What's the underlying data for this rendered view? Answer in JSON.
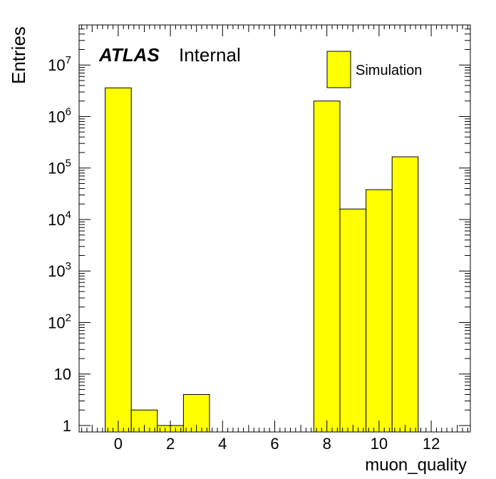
{
  "chart_data": {
    "type": "bar",
    "title": "",
    "xlabel": "muon_quality",
    "ylabel": "Entries",
    "x_scale": "linear",
    "y_scale": "log",
    "xlim": [
      -1.5,
      13.5
    ],
    "ylim": [
      0.75,
      60000000
    ],
    "bins": [
      {
        "low": -0.5,
        "high": 0.5,
        "value": 3600000
      },
      {
        "low": 0.5,
        "high": 1.5,
        "value": 2
      },
      {
        "low": 1.5,
        "high": 2.5,
        "value": 1
      },
      {
        "low": 2.5,
        "high": 3.5,
        "value": 4
      },
      {
        "low": 3.5,
        "high": 4.5,
        "value": 0
      },
      {
        "low": 4.5,
        "high": 5.5,
        "value": 0
      },
      {
        "low": 5.5,
        "high": 6.5,
        "value": 0
      },
      {
        "low": 6.5,
        "high": 7.5,
        "value": 0
      },
      {
        "low": 7.5,
        "high": 8.5,
        "value": 2000000
      },
      {
        "low": 8.5,
        "high": 9.5,
        "value": 16000
      },
      {
        "low": 9.5,
        "high": 10.5,
        "value": 38000
      },
      {
        "low": 10.5,
        "high": 11.5,
        "value": 165000
      }
    ],
    "x_ticks": [
      "0",
      "2",
      "4",
      "6",
      "8",
      "10",
      "12"
    ],
    "y_ticks": [
      {
        "base": "1",
        "exp": ""
      },
      {
        "base": "10",
        "exp": ""
      },
      {
        "base": "10",
        "exp": "2"
      },
      {
        "base": "10",
        "exp": "3"
      },
      {
        "base": "10",
        "exp": "4"
      },
      {
        "base": "10",
        "exp": "5"
      },
      {
        "base": "10",
        "exp": "6"
      },
      {
        "base": "10",
        "exp": "7"
      }
    ],
    "legend": {
      "entries": [
        "Simulation"
      ],
      "position": "top-right"
    },
    "fill_color": "#ffff00",
    "stroke_color": "#000000"
  },
  "annotations": {
    "experiment": "ATLAS",
    "status": "Internal"
  }
}
